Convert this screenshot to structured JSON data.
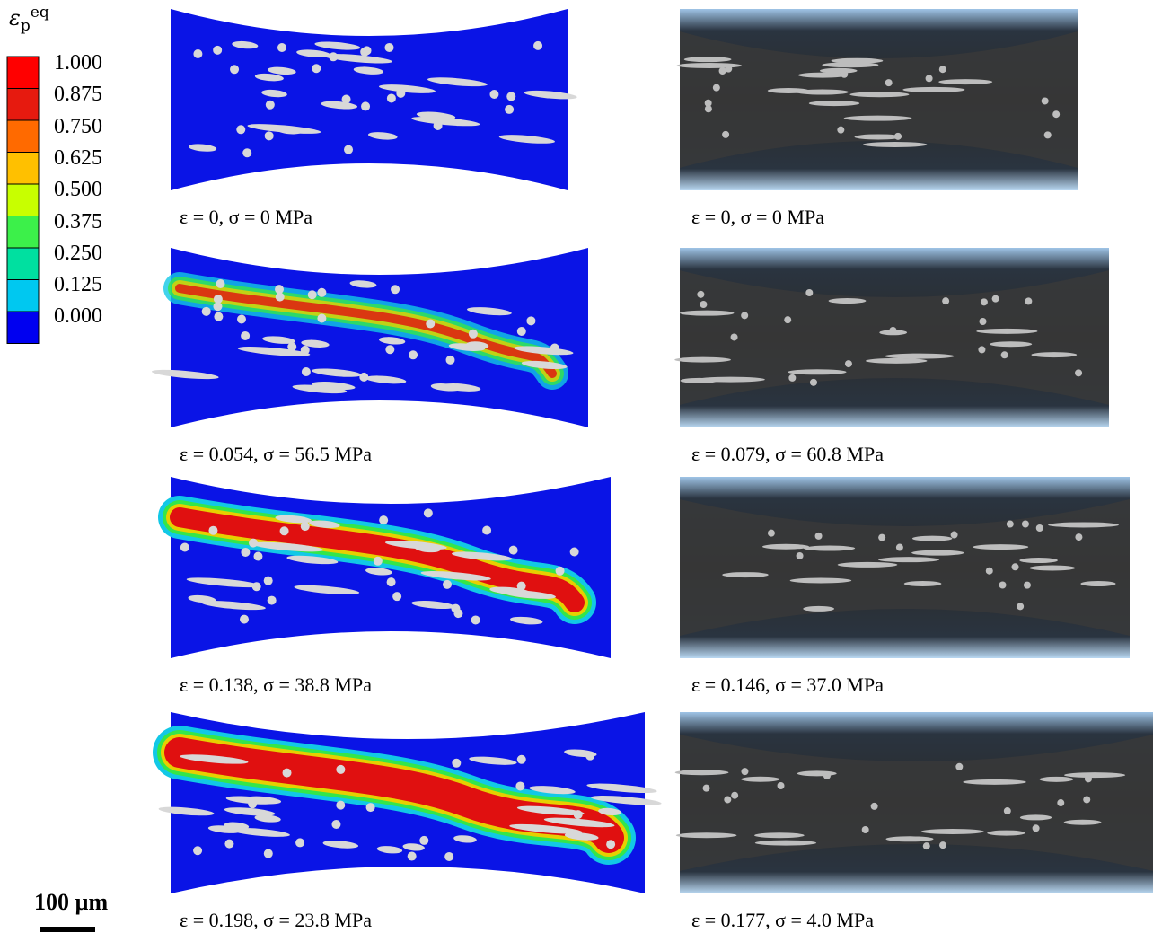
{
  "legend": {
    "title": {
      "symbol": "ε",
      "subscript": "p",
      "superscript": "eq"
    },
    "labels": [
      "1.000",
      "0.875",
      "0.750",
      "0.625",
      "0.500",
      "0.375",
      "0.250",
      "0.125",
      "0.000"
    ]
  },
  "panels": [
    {
      "simulation_caption": "ε = 0, σ = 0 MPa",
      "experiment_caption": "ε = 0, σ = 0 MPa"
    },
    {
      "simulation_caption": "ε = 0.054, σ = 56.5 MPa",
      "experiment_caption": "ε = 0.079, σ = 60.8 MPa"
    },
    {
      "simulation_caption": "ε = 0.138, σ = 38.8 MPa",
      "experiment_caption": "ε = 0.146, σ = 37.0 MPa"
    },
    {
      "simulation_caption": "ε = 0.198, σ = 23.8 MPa",
      "experiment_caption": "ε = 0.177, σ = 4.0 MPa"
    }
  ],
  "scale_bar": "100 µm"
}
